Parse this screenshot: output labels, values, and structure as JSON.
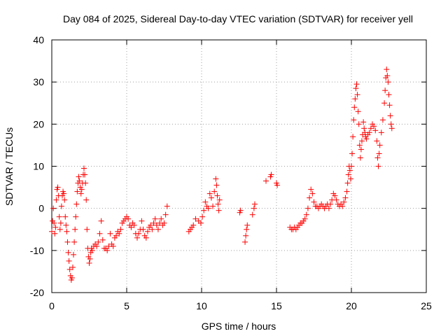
{
  "chart_data": {
    "type": "scatter",
    "title": "Day 084 of 2025, Sidereal Day-to-day VTEC variation (SDTVAR) for receiver yell",
    "xlabel": "GPS time / hours",
    "ylabel": "SDTVAR / TECUs",
    "xlim": [
      0,
      25
    ],
    "ylim": [
      -20,
      40
    ],
    "xticks": [
      0,
      5,
      10,
      15,
      20,
      25
    ],
    "yticks": [
      -20,
      -10,
      0,
      10,
      20,
      30,
      40
    ],
    "grid": true,
    "marker": "+",
    "color": "#ff0000",
    "series": [
      {
        "name": "SDTVAR",
        "points": [
          [
            0.0,
            -5.5
          ],
          [
            0.05,
            -3.0
          ],
          [
            0.1,
            0.0
          ],
          [
            0.15,
            -3.5
          ],
          [
            0.2,
            -6.0
          ],
          [
            0.25,
            -4.5
          ],
          [
            0.3,
            2.0
          ],
          [
            0.35,
            4.5
          ],
          [
            0.4,
            5.0
          ],
          [
            0.45,
            3.0
          ],
          [
            0.5,
            -2.0
          ],
          [
            0.55,
            -5.0
          ],
          [
            0.6,
            -3.5
          ],
          [
            0.65,
            0.5
          ],
          [
            0.7,
            3.0
          ],
          [
            0.75,
            4.0
          ],
          [
            0.8,
            3.5
          ],
          [
            0.85,
            2.0
          ],
          [
            0.9,
            -2.0
          ],
          [
            0.95,
            -4.0
          ],
          [
            1.0,
            -5.5
          ],
          [
            1.05,
            -8.0
          ],
          [
            1.1,
            -10.5
          ],
          [
            1.15,
            -12.5
          ],
          [
            1.2,
            -14.5
          ],
          [
            1.25,
            -16.0
          ],
          [
            1.3,
            -17.0
          ],
          [
            1.35,
            -16.5
          ],
          [
            1.4,
            -14.0
          ],
          [
            1.45,
            -11.0
          ],
          [
            1.5,
            -8.0
          ],
          [
            1.55,
            -5.0
          ],
          [
            1.6,
            -2.0
          ],
          [
            1.65,
            1.0
          ],
          [
            1.7,
            4.0
          ],
          [
            1.75,
            6.0
          ],
          [
            1.8,
            7.5
          ],
          [
            1.85,
            6.5
          ],
          [
            1.9,
            5.0
          ],
          [
            1.95,
            3.5
          ],
          [
            2.0,
            4.5
          ],
          [
            2.05,
            6.0
          ],
          [
            2.1,
            8.0
          ],
          [
            2.15,
            9.5
          ],
          [
            2.2,
            8.0
          ],
          [
            2.25,
            6.0
          ],
          [
            2.3,
            2.0
          ],
          [
            2.35,
            -5.0
          ],
          [
            2.4,
            -9.5
          ],
          [
            2.45,
            -11.5
          ],
          [
            2.5,
            -13.0
          ],
          [
            2.55,
            -12.0
          ],
          [
            2.6,
            -10.5
          ],
          [
            2.65,
            -9.5
          ],
          [
            2.7,
            -10.0
          ],
          [
            2.8,
            -9.0
          ],
          [
            2.9,
            -8.5
          ],
          [
            3.0,
            -9.0
          ],
          [
            3.1,
            -8.0
          ],
          [
            3.2,
            -6.0
          ],
          [
            3.3,
            -3.0
          ],
          [
            3.4,
            -7.5
          ],
          [
            3.5,
            -9.5
          ],
          [
            3.6,
            -9.5
          ],
          [
            3.7,
            -10.0
          ],
          [
            3.8,
            -9.0
          ],
          [
            3.9,
            -6.0
          ],
          [
            4.0,
            -8.5
          ],
          [
            4.1,
            -9.0
          ],
          [
            4.2,
            -7.0
          ],
          [
            4.3,
            -6.5
          ],
          [
            4.4,
            -5.5
          ],
          [
            4.5,
            -6.0
          ],
          [
            4.6,
            -5.0
          ],
          [
            4.7,
            -3.5
          ],
          [
            4.8,
            -3.0
          ],
          [
            4.9,
            -2.5
          ],
          [
            5.0,
            -2.0
          ],
          [
            5.1,
            -2.5
          ],
          [
            5.2,
            -4.0
          ],
          [
            5.3,
            -4.5
          ],
          [
            5.4,
            -3.5
          ],
          [
            5.5,
            -4.0
          ],
          [
            5.6,
            -6.0
          ],
          [
            5.7,
            -7.0
          ],
          [
            5.8,
            -6.0
          ],
          [
            5.9,
            -5.0
          ],
          [
            6.0,
            -3.0
          ],
          [
            6.1,
            -5.0
          ],
          [
            6.2,
            -6.5
          ],
          [
            6.3,
            -7.0
          ],
          [
            6.4,
            -5.5
          ],
          [
            6.5,
            -4.5
          ],
          [
            6.6,
            -4.0
          ],
          [
            6.7,
            -5.0
          ],
          [
            6.8,
            -3.5
          ],
          [
            6.9,
            -2.5
          ],
          [
            7.0,
            -4.0
          ],
          [
            7.1,
            -5.0
          ],
          [
            7.2,
            -3.5
          ],
          [
            7.3,
            -2.5
          ],
          [
            7.4,
            -4.0
          ],
          [
            7.5,
            -3.5
          ],
          [
            7.6,
            -1.5
          ],
          [
            7.7,
            0.5
          ],
          [
            9.15,
            -5.5
          ],
          [
            9.25,
            -5.0
          ],
          [
            9.35,
            -4.5
          ],
          [
            9.45,
            -4.0
          ],
          [
            9.6,
            -2.5
          ],
          [
            9.8,
            -3.0
          ],
          [
            9.95,
            -3.5
          ],
          [
            10.05,
            -2.0
          ],
          [
            10.15,
            -0.5
          ],
          [
            10.25,
            1.5
          ],
          [
            10.35,
            0.5
          ],
          [
            10.45,
            0.0
          ],
          [
            10.55,
            3.5
          ],
          [
            10.65,
            2.5
          ],
          [
            10.75,
            0.5
          ],
          [
            10.85,
            4.0
          ],
          [
            10.95,
            7.0
          ],
          [
            11.0,
            5.5
          ],
          [
            11.05,
            3.0
          ],
          [
            11.1,
            1.0
          ],
          [
            11.15,
            -0.5
          ],
          [
            11.2,
            2.0
          ],
          [
            12.55,
            -1.0
          ],
          [
            12.6,
            -0.5
          ],
          [
            12.9,
            -8.0
          ],
          [
            12.95,
            -6.5
          ],
          [
            13.0,
            -5.0
          ],
          [
            13.05,
            -4.0
          ],
          [
            13.4,
            -1.5
          ],
          [
            13.5,
            0.0
          ],
          [
            13.55,
            1.0
          ],
          [
            14.3,
            6.5
          ],
          [
            14.6,
            7.5
          ],
          [
            14.65,
            8.0
          ],
          [
            15.0,
            6.0
          ],
          [
            15.05,
            5.5
          ],
          [
            15.9,
            -4.5
          ],
          [
            16.0,
            -5.0
          ],
          [
            16.1,
            -5.0
          ],
          [
            16.2,
            -4.5
          ],
          [
            16.3,
            -5.0
          ],
          [
            16.4,
            -4.5
          ],
          [
            16.5,
            -4.0
          ],
          [
            16.6,
            -3.5
          ],
          [
            16.7,
            -3.5
          ],
          [
            16.8,
            -3.0
          ],
          [
            16.9,
            -2.5
          ],
          [
            17.0,
            -1.5
          ],
          [
            17.1,
            0.0
          ],
          [
            17.2,
            2.5
          ],
          [
            17.3,
            4.5
          ],
          [
            17.4,
            3.5
          ],
          [
            17.5,
            1.5
          ],
          [
            17.6,
            0.5
          ],
          [
            17.7,
            0.5
          ],
          [
            17.8,
            0.0
          ],
          [
            17.9,
            0.5
          ],
          [
            18.0,
            1.0
          ],
          [
            18.1,
            0.5
          ],
          [
            18.2,
            0.0
          ],
          [
            18.3,
            0.5
          ],
          [
            18.4,
            1.0
          ],
          [
            18.5,
            0.0
          ],
          [
            18.6,
            1.0
          ],
          [
            18.7,
            2.0
          ],
          [
            18.8,
            3.5
          ],
          [
            18.9,
            3.0
          ],
          [
            19.0,
            2.0
          ],
          [
            19.1,
            1.0
          ],
          [
            19.2,
            0.5
          ],
          [
            19.3,
            1.0
          ],
          [
            19.4,
            0.5
          ],
          [
            19.5,
            1.5
          ],
          [
            19.6,
            2.5
          ],
          [
            19.7,
            4.0
          ],
          [
            19.75,
            6.0
          ],
          [
            19.8,
            8.0
          ],
          [
            19.85,
            10.0
          ],
          [
            19.9,
            9.0
          ],
          [
            19.95,
            7.0
          ],
          [
            20.0,
            10.0
          ],
          [
            20.05,
            13.0
          ],
          [
            20.1,
            17.0
          ],
          [
            20.15,
            21.0
          ],
          [
            20.2,
            24.0
          ],
          [
            20.25,
            26.0
          ],
          [
            20.3,
            28.5
          ],
          [
            20.35,
            29.5
          ],
          [
            20.4,
            27.0
          ],
          [
            20.45,
            23.0
          ],
          [
            20.5,
            20.0
          ],
          [
            20.55,
            15.0
          ],
          [
            20.6,
            12.0
          ],
          [
            20.65,
            14.0
          ],
          [
            20.7,
            16.0
          ],
          [
            20.75,
            17.5
          ],
          [
            20.8,
            20.5
          ],
          [
            20.85,
            19.0
          ],
          [
            20.9,
            18.0
          ],
          [
            20.95,
            17.0
          ],
          [
            21.0,
            16.5
          ],
          [
            21.1,
            17.5
          ],
          [
            21.2,
            18.0
          ],
          [
            21.3,
            19.0
          ],
          [
            21.4,
            20.0
          ],
          [
            21.5,
            19.5
          ],
          [
            21.6,
            18.5
          ],
          [
            21.7,
            16.0
          ],
          [
            21.75,
            12.0
          ],
          [
            21.8,
            10.0
          ],
          [
            21.85,
            13.0
          ],
          [
            21.9,
            15.0
          ],
          [
            22.0,
            18.0
          ],
          [
            22.1,
            21.0
          ],
          [
            22.2,
            25.0
          ],
          [
            22.25,
            28.0
          ],
          [
            22.3,
            31.0
          ],
          [
            22.35,
            33.0
          ],
          [
            22.4,
            31.5
          ],
          [
            22.45,
            30.0
          ],
          [
            22.5,
            27.0
          ],
          [
            22.55,
            24.5
          ],
          [
            22.6,
            22.0
          ],
          [
            22.65,
            20.0
          ],
          [
            22.7,
            19.0
          ]
        ]
      }
    ]
  }
}
